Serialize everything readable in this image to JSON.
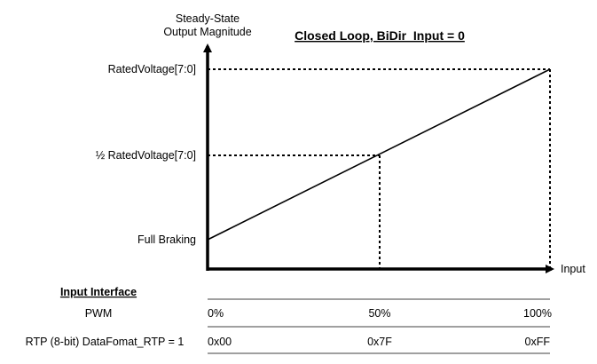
{
  "y_axis_label": [
    "Steady-State",
    "Output Magnitude"
  ],
  "x_axis_label": "Input",
  "title": "Closed Loop, BiDir_Input = 0",
  "y_levels": {
    "rated": "RatedVoltage[7:0]",
    "half": "½ RatedVoltage[7:0]",
    "min": "Full Braking"
  },
  "input_interface": {
    "header": "Input Interface",
    "rows": [
      {
        "label": "PWM",
        "values": [
          "0%",
          "50%",
          "100%"
        ]
      },
      {
        "label": "RTP (8-bit) DataFomat_RTP = 1",
        "values": [
          "0x00",
          "0x7F",
          "0xFF"
        ]
      }
    ]
  }
}
